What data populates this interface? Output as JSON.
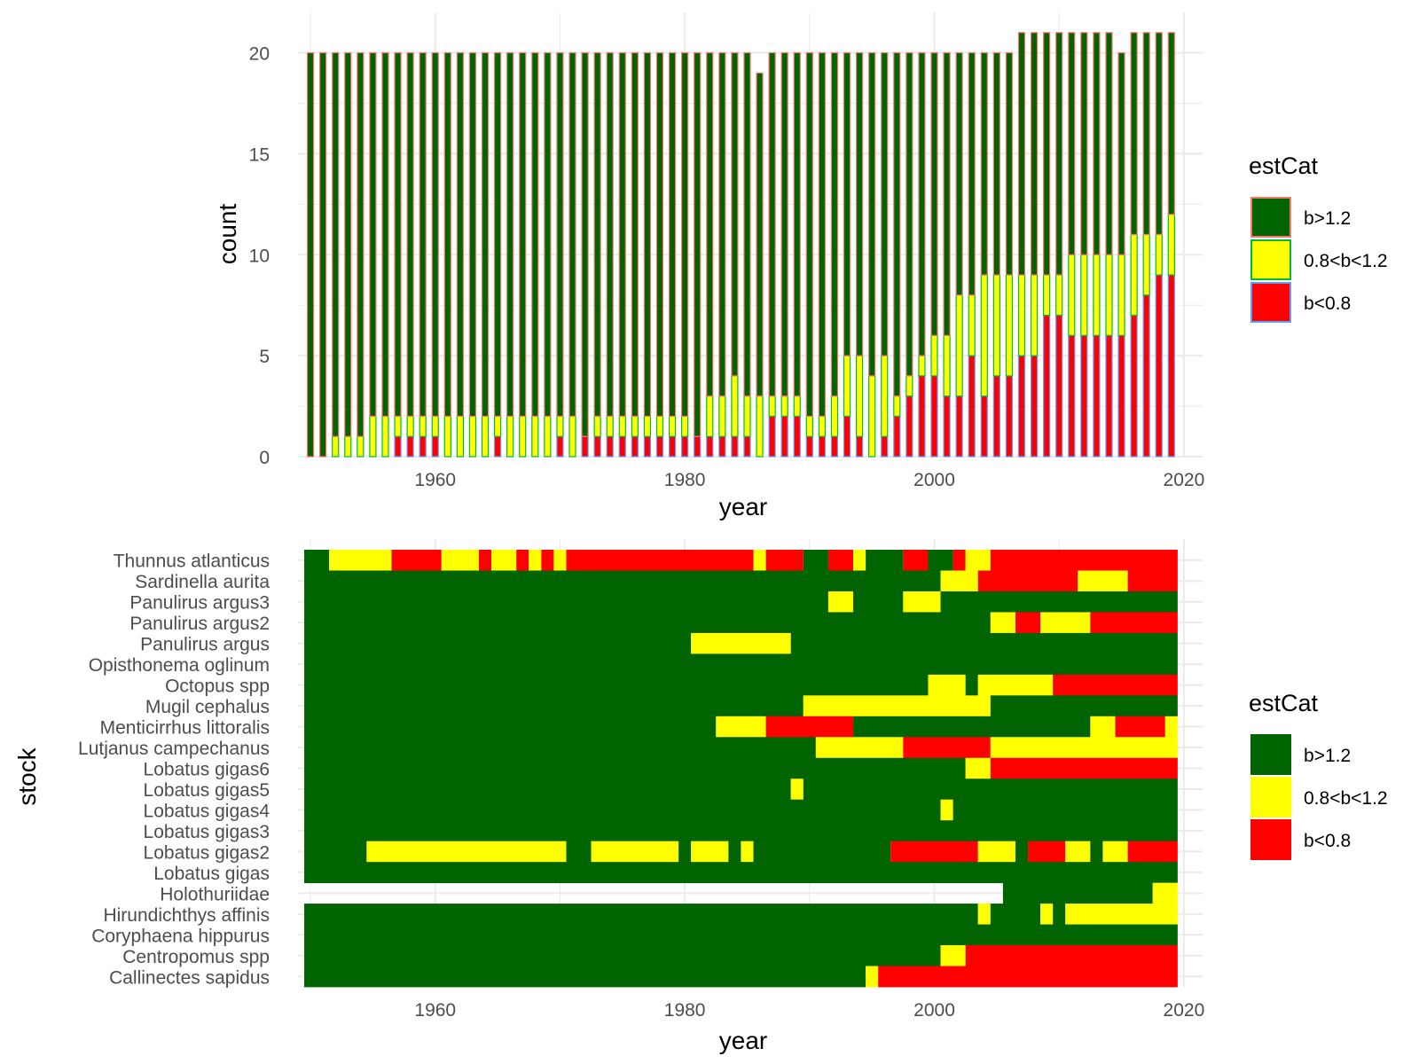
{
  "colors": {
    "b_gt_1_2": "#006400",
    "mid": "#FFFF00",
    "b_lt_0_8": "#FF0000",
    "grid": "#EBEBEB",
    "outline_b_gt_1_2": "#F8766D",
    "outline_mid": "#00BA38",
    "outline_b_lt_0_8": "#619CFF"
  },
  "chart_data": [
    {
      "type": "bar",
      "stacked": true,
      "xlabel": "year",
      "ylabel": "count",
      "x_ticks": [
        "1960",
        "1980",
        "2000",
        "2020"
      ],
      "y_ticks": [
        "0",
        "5",
        "10",
        "15",
        "20"
      ],
      "xlim": [
        1949,
        2021.5
      ],
      "ylim": [
        0,
        22
      ],
      "legend": {
        "title": "estCat",
        "position": "right",
        "entries": [
          "b>1.2",
          "0.8<b<1.2",
          "b<0.8"
        ]
      },
      "years_start": 1950,
      "years_end": 2019,
      "series": [
        {
          "name": "b<0.8",
          "values": [
            0,
            0,
            0,
            0,
            0,
            0,
            0,
            1,
            1,
            1,
            1,
            0,
            0,
            0,
            0,
            1,
            0,
            0,
            0,
            0,
            1,
            0,
            1,
            1,
            1,
            1,
            1,
            1,
            1,
            1,
            1,
            1,
            1,
            1,
            1,
            1,
            0,
            2,
            2,
            2,
            1,
            1,
            1,
            2,
            1,
            0,
            1,
            2,
            3,
            4,
            4,
            3,
            3,
            5,
            3,
            4,
            4,
            5,
            5,
            7,
            7,
            6,
            6,
            6,
            6,
            6,
            7,
            8,
            9,
            9
          ]
        },
        {
          "name": "0.8<b<1.2",
          "values": [
            0,
            0,
            1,
            1,
            1,
            2,
            2,
            1,
            1,
            1,
            1,
            2,
            2,
            2,
            2,
            1,
            2,
            2,
            2,
            2,
            1,
            2,
            0,
            1,
            1,
            1,
            1,
            1,
            1,
            1,
            1,
            0,
            2,
            2,
            3,
            2,
            3,
            1,
            1,
            1,
            1,
            1,
            2,
            3,
            4,
            4,
            4,
            1,
            1,
            1,
            2,
            3,
            5,
            3,
            6,
            5,
            5,
            4,
            4,
            2,
            2,
            4,
            4,
            4,
            4,
            4,
            4,
            3,
            2,
            3
          ]
        },
        {
          "name": "b>1.2",
          "values": [
            20,
            20,
            19,
            19,
            19,
            18,
            18,
            18,
            18,
            18,
            18,
            18,
            18,
            18,
            18,
            18,
            18,
            18,
            18,
            18,
            18,
            18,
            19,
            18,
            18,
            18,
            18,
            18,
            18,
            18,
            18,
            19,
            17,
            17,
            16,
            17,
            16,
            17,
            17,
            17,
            18,
            18,
            17,
            15,
            15,
            16,
            15,
            17,
            16,
            15,
            14,
            14,
            12,
            12,
            11,
            11,
            11,
            12,
            12,
            12,
            12,
            11,
            11,
            11,
            11,
            10,
            10,
            10,
            10,
            9
          ]
        }
      ]
    },
    {
      "type": "heatmap",
      "xlabel": "year",
      "ylabel": "stock",
      "x_ticks": [
        "1960",
        "1980",
        "2000",
        "2020"
      ],
      "xlim": [
        1949,
        2021.5
      ],
      "legend": {
        "title": "estCat",
        "position": "right",
        "entries": [
          "b>1.2",
          "0.8<b<1.2",
          "b<0.8"
        ]
      },
      "stocks": [
        "Thunnus atlanticus",
        "Sardinella aurita",
        "Panulirus argus3",
        "Panulirus argus2",
        "Panulirus argus",
        "Opisthonema oglinum",
        "Octopus spp",
        "Mugil cephalus",
        "Menticirrhus littoralis",
        "Lutjanus campechanus",
        "Lobatus gigas6",
        "Lobatus gigas5",
        "Lobatus gigas4",
        "Lobatus gigas3",
        "Lobatus gigas2",
        "Lobatus gigas",
        "Holothuriidae",
        "Hirundichthys affinis",
        "Coryphaena hippurus",
        "Centropomus spp",
        "Callinectes sapidus"
      ],
      "segments": [
        [
          [
            1950,
            1951,
            "b>1.2"
          ],
          [
            1952,
            1956,
            "0.8<b<1.2"
          ],
          [
            1957,
            1960,
            "b<0.8"
          ],
          [
            1961,
            1963,
            "0.8<b<1.2"
          ],
          [
            1964,
            1964,
            "b<0.8"
          ],
          [
            1965,
            1966,
            "0.8<b<1.2"
          ],
          [
            1967,
            1967,
            "b<0.8"
          ],
          [
            1968,
            1968,
            "0.8<b<1.2"
          ],
          [
            1969,
            1969,
            "b<0.8"
          ],
          [
            1970,
            1970,
            "0.8<b<1.2"
          ],
          [
            1971,
            1985,
            "b<0.8"
          ],
          [
            1986,
            1986,
            "0.8<b<1.2"
          ],
          [
            1987,
            1989,
            "b<0.8"
          ],
          [
            1990,
            1991,
            "b>1.2"
          ],
          [
            1992,
            1993,
            "b<0.8"
          ],
          [
            1994,
            1994,
            "0.8<b<1.2"
          ],
          [
            1995,
            1997,
            "b>1.2"
          ],
          [
            1998,
            1999,
            "b<0.8"
          ],
          [
            2000,
            2001,
            "b>1.2"
          ],
          [
            2002,
            2002,
            "b<0.8"
          ],
          [
            2003,
            2004,
            "0.8<b<1.2"
          ],
          [
            2005,
            2019,
            "b<0.8"
          ]
        ],
        [
          [
            1950,
            2000,
            "b>1.2"
          ],
          [
            2001,
            2003,
            "0.8<b<1.2"
          ],
          [
            2004,
            2011,
            "b<0.8"
          ],
          [
            2012,
            2015,
            "0.8<b<1.2"
          ],
          [
            2016,
            2019,
            "b<0.8"
          ]
        ],
        [
          [
            1950,
            1991,
            "b>1.2"
          ],
          [
            1992,
            1993,
            "0.8<b<1.2"
          ],
          [
            1994,
            1997,
            "b>1.2"
          ],
          [
            1998,
            2000,
            "0.8<b<1.2"
          ],
          [
            2001,
            2019,
            "b>1.2"
          ]
        ],
        [
          [
            1950,
            2004,
            "b>1.2"
          ],
          [
            2005,
            2006,
            "0.8<b<1.2"
          ],
          [
            2007,
            2008,
            "b<0.8"
          ],
          [
            2009,
            2012,
            "0.8<b<1.2"
          ],
          [
            2013,
            2019,
            "b<0.8"
          ]
        ],
        [
          [
            1950,
            1980,
            "b>1.2"
          ],
          [
            1981,
            1988,
            "0.8<b<1.2"
          ],
          [
            1989,
            2019,
            "b>1.2"
          ]
        ],
        [
          [
            1950,
            2019,
            "b>1.2"
          ]
        ],
        [
          [
            1950,
            1999,
            "b>1.2"
          ],
          [
            2000,
            2002,
            "0.8<b<1.2"
          ],
          [
            2003,
            2003,
            "b>1.2"
          ],
          [
            2004,
            2009,
            "0.8<b<1.2"
          ],
          [
            2010,
            2019,
            "b<0.8"
          ]
        ],
        [
          [
            1950,
            1989,
            "b>1.2"
          ],
          [
            1990,
            2004,
            "0.8<b<1.2"
          ],
          [
            2005,
            2019,
            "b>1.2"
          ]
        ],
        [
          [
            1950,
            1982,
            "b>1.2"
          ],
          [
            1983,
            1986,
            "0.8<b<1.2"
          ],
          [
            1987,
            1993,
            "b<0.8"
          ],
          [
            1994,
            2012,
            "b>1.2"
          ],
          [
            2013,
            2014,
            "0.8<b<1.2"
          ],
          [
            2015,
            2018,
            "b<0.8"
          ],
          [
            2019,
            2019,
            "0.8<b<1.2"
          ]
        ],
        [
          [
            1950,
            1990,
            "b>1.2"
          ],
          [
            1991,
            1997,
            "0.8<b<1.2"
          ],
          [
            1998,
            2004,
            "b<0.8"
          ],
          [
            2005,
            2019,
            "0.8<b<1.2"
          ]
        ],
        [
          [
            1950,
            2002,
            "b>1.2"
          ],
          [
            2003,
            2004,
            "0.8<b<1.2"
          ],
          [
            2005,
            2019,
            "b<0.8"
          ]
        ],
        [
          [
            1950,
            1988,
            "b>1.2"
          ],
          [
            1989,
            1989,
            "0.8<b<1.2"
          ],
          [
            1990,
            2019,
            "b>1.2"
          ]
        ],
        [
          [
            1950,
            2000,
            "b>1.2"
          ],
          [
            2001,
            2001,
            "0.8<b<1.2"
          ],
          [
            2002,
            2019,
            "b>1.2"
          ]
        ],
        [
          [
            1950,
            2019,
            "b>1.2"
          ]
        ],
        [
          [
            1950,
            1954,
            "b>1.2"
          ],
          [
            1955,
            1970,
            "0.8<b<1.2"
          ],
          [
            1971,
            1972,
            "b>1.2"
          ],
          [
            1973,
            1979,
            "0.8<b<1.2"
          ],
          [
            1980,
            1980,
            "b>1.2"
          ],
          [
            1981,
            1983,
            "0.8<b<1.2"
          ],
          [
            1984,
            1984,
            "b>1.2"
          ],
          [
            1985,
            1985,
            "0.8<b<1.2"
          ],
          [
            1986,
            1996,
            "b>1.2"
          ],
          [
            1997,
            2003,
            "b<0.8"
          ],
          [
            2004,
            2006,
            "0.8<b<1.2"
          ],
          [
            2007,
            2007,
            "b>1.2"
          ],
          [
            2008,
            2010,
            "b<0.8"
          ],
          [
            2011,
            2012,
            "0.8<b<1.2"
          ],
          [
            2013,
            2013,
            "b>1.2"
          ],
          [
            2014,
            2015,
            "0.8<b<1.2"
          ],
          [
            2016,
            2019,
            "b<0.8"
          ]
        ],
        [
          [
            1950,
            2019,
            "b>1.2"
          ]
        ],
        [
          [
            2006,
            2017,
            "b>1.2"
          ],
          [
            2018,
            2019,
            "0.8<b<1.2"
          ]
        ],
        [
          [
            1950,
            2003,
            "b>1.2"
          ],
          [
            2004,
            2004,
            "0.8<b<1.2"
          ],
          [
            2005,
            2008,
            "b>1.2"
          ],
          [
            2009,
            2009,
            "0.8<b<1.2"
          ],
          [
            2010,
            2010,
            "b>1.2"
          ],
          [
            2011,
            2019,
            "0.8<b<1.2"
          ]
        ],
        [
          [
            1950,
            2019,
            "b>1.2"
          ]
        ],
        [
          [
            1950,
            2000,
            "b>1.2"
          ],
          [
            2001,
            2002,
            "0.8<b<1.2"
          ],
          [
            2003,
            2019,
            "b<0.8"
          ]
        ],
        [
          [
            1950,
            1994,
            "b>1.2"
          ],
          [
            1995,
            1995,
            "0.8<b<1.2"
          ],
          [
            1996,
            2019,
            "b<0.8"
          ]
        ]
      ]
    }
  ]
}
